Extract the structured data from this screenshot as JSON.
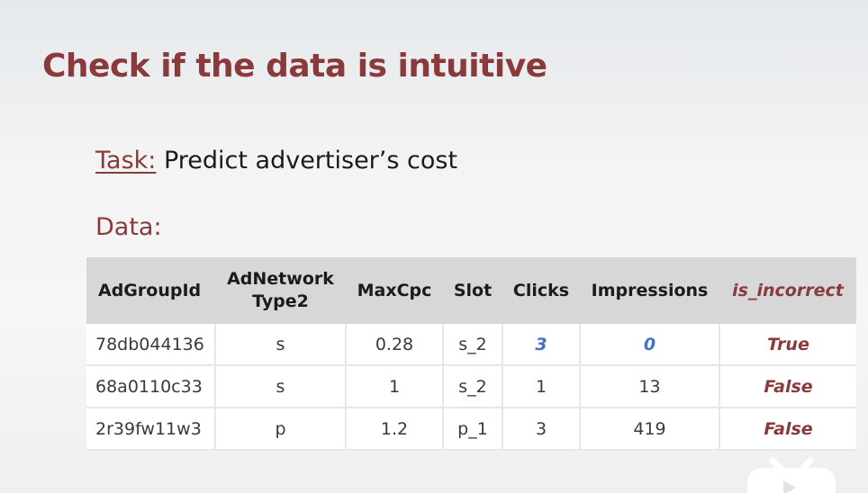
{
  "slide": {
    "title": "Check if the data is intuitive",
    "task_label": "Task:",
    "task_text": " Predict advertiser’s cost",
    "data_label": "Data:"
  },
  "table": {
    "headers": [
      "AdGroupId",
      "AdNetwork\nType2",
      "MaxCpc",
      "Slot",
      "Clicks",
      "Impressions",
      "is_incorrect"
    ],
    "rows": [
      [
        "78db044136",
        "s",
        "0.28",
        "s_2",
        "3",
        "0",
        "True"
      ],
      [
        "68a0110c33",
        "s",
        "1",
        "s_2",
        "1",
        "13",
        "False"
      ],
      [
        "2r39fw11w3",
        "p",
        "1.2",
        "p_1",
        "3",
        "419",
        "False"
      ]
    ]
  },
  "colors": {
    "accent_maroon": "#8a3a3a",
    "highlight_blue": "#4472c4",
    "header_gray": "#d7d7d7"
  },
  "icons": {
    "watermark": "tv-logo-icon"
  }
}
